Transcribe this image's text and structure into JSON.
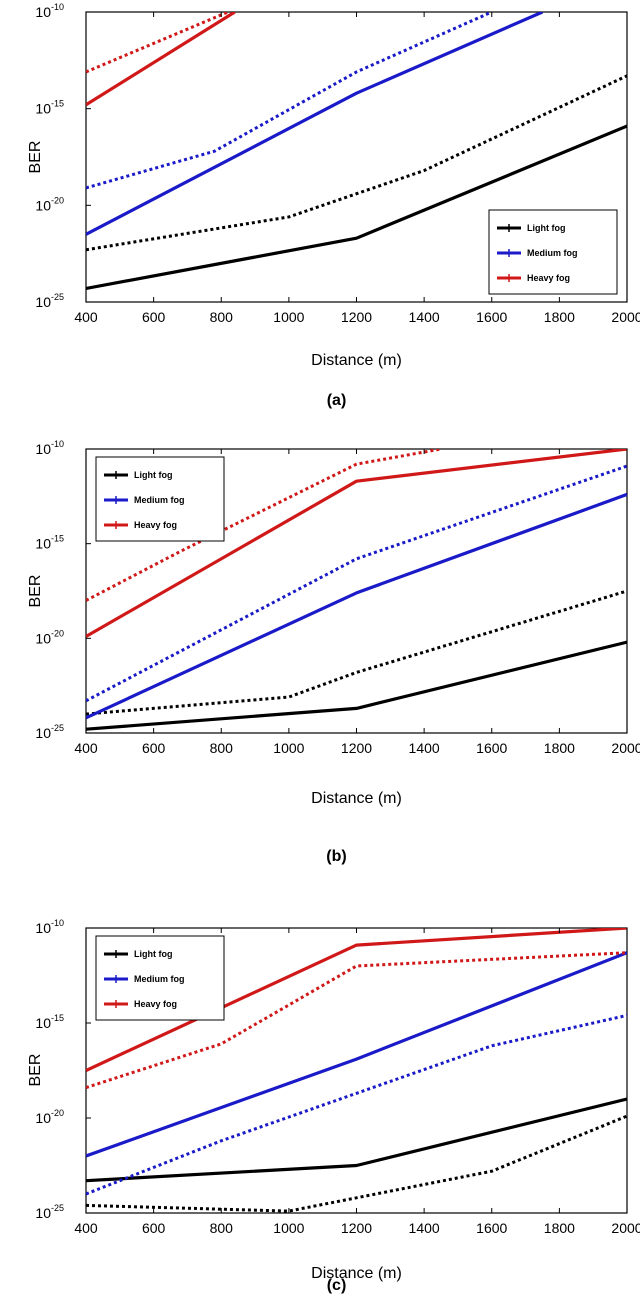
{
  "colors": {
    "light": "#000000",
    "medium": "#1a1ac8",
    "heavy": "#d01818"
  },
  "chart_data": [
    {
      "type": "line",
      "caption": "(a)",
      "xlabel": "Distance (m)",
      "ylabel": "BER",
      "xlim": [
        400,
        2000
      ],
      "ylim_exponent": [
        -25,
        -10
      ],
      "y_scale": "log",
      "xticks": [
        "400",
        "600",
        "800",
        "1000",
        "1200",
        "1400",
        "1600",
        "1800",
        "2000"
      ],
      "ytick_base": "10",
      "yticks_exp": [
        "-10",
        "-15",
        "-20",
        "-25"
      ],
      "legend_position": "bottom-right",
      "legend": [
        {
          "label": "Light fog",
          "color": "light"
        },
        {
          "label": "Medium fog",
          "color": "medium"
        },
        {
          "label": "Heavy fog",
          "color": "heavy"
        }
      ],
      "series": [
        {
          "color": "light",
          "dash": false,
          "x": [
            400,
            1200,
            2000
          ],
          "y": [
            -24.3,
            -21.7,
            -15.9
          ]
        },
        {
          "color": "light",
          "dash": true,
          "x": [
            400,
            1000,
            1400,
            2000
          ],
          "y": [
            -22.3,
            -20.6,
            -18.2,
            -13.3
          ]
        },
        {
          "color": "medium",
          "dash": false,
          "x": [
            400,
            1200,
            1750
          ],
          "y": [
            -21.5,
            -14.2,
            -10
          ]
        },
        {
          "color": "medium",
          "dash": true,
          "x": [
            400,
            780,
            1200,
            1600
          ],
          "y": [
            -19.1,
            -17.2,
            -13.1,
            -10
          ]
        },
        {
          "color": "heavy",
          "dash": false,
          "x": [
            400,
            840
          ],
          "y": [
            -14.8,
            -10
          ]
        },
        {
          "color": "heavy",
          "dash": true,
          "x": [
            400,
            820
          ],
          "y": [
            -13.1,
            -10
          ]
        }
      ]
    },
    {
      "type": "line",
      "caption": "(b)",
      "xlabel": "Distance (m)",
      "ylabel": "BER",
      "xlim": [
        400,
        2000
      ],
      "ylim_exponent": [
        -25,
        -10
      ],
      "y_scale": "log",
      "xticks": [
        "400",
        "600",
        "800",
        "1000",
        "1200",
        "1400",
        "1600",
        "1800",
        "2000"
      ],
      "ytick_base": "10",
      "yticks_exp": [
        "-10",
        "-15",
        "-20",
        "-25"
      ],
      "legend_position": "top-left",
      "legend": [
        {
          "label": "Light fog",
          "color": "light"
        },
        {
          "label": "Medium fog",
          "color": "medium"
        },
        {
          "label": "Heavy fog",
          "color": "heavy"
        }
      ],
      "series": [
        {
          "color": "light",
          "dash": false,
          "x": [
            400,
            1200,
            2000
          ],
          "y": [
            -24.8,
            -23.7,
            -20.2
          ]
        },
        {
          "color": "light",
          "dash": true,
          "x": [
            400,
            1000,
            1200,
            2000
          ],
          "y": [
            -24.0,
            -23.1,
            -21.8,
            -17.5
          ]
        },
        {
          "color": "medium",
          "dash": false,
          "x": [
            400,
            1200,
            2000
          ],
          "y": [
            -24.2,
            -17.6,
            -12.4
          ]
        },
        {
          "color": "medium",
          "dash": true,
          "x": [
            400,
            1200,
            2000
          ],
          "y": [
            -23.3,
            -15.8,
            -10.9
          ]
        },
        {
          "color": "heavy",
          "dash": false,
          "x": [
            400,
            1200,
            2000
          ],
          "y": [
            -19.9,
            -11.7,
            -10
          ]
        },
        {
          "color": "heavy",
          "dash": true,
          "x": [
            400,
            680,
            1200,
            1450
          ],
          "y": [
            -18.0,
            -15.4,
            -10.8,
            -10
          ]
        }
      ]
    },
    {
      "type": "line",
      "caption": "(c)",
      "xlabel": "Distance (m)",
      "ylabel": "BER",
      "xlim": [
        400,
        2000
      ],
      "ylim_exponent": [
        -25,
        -10
      ],
      "y_scale": "log",
      "xticks": [
        "400",
        "600",
        "800",
        "1000",
        "1200",
        "1400",
        "1600",
        "1800",
        "2000"
      ],
      "ytick_base": "10",
      "yticks_exp": [
        "-10",
        "-15",
        "-20",
        "-25"
      ],
      "legend_position": "top-left",
      "legend": [
        {
          "label": "Light fog",
          "color": "light"
        },
        {
          "label": "Medium fog",
          "color": "medium"
        },
        {
          "label": "Heavy fog",
          "color": "heavy"
        }
      ],
      "series": [
        {
          "color": "light",
          "dash": false,
          "x": [
            400,
            1200,
            2000
          ],
          "y": [
            -23.3,
            -22.5,
            -19.0
          ]
        },
        {
          "color": "light",
          "dash": true,
          "x": [
            400,
            1000,
            1600,
            2000
          ],
          "y": [
            -24.6,
            -24.9,
            -22.8,
            -19.9
          ]
        },
        {
          "color": "medium",
          "dash": false,
          "x": [
            400,
            1200,
            2000
          ],
          "y": [
            -22.0,
            -16.9,
            -11.3
          ]
        },
        {
          "color": "medium",
          "dash": true,
          "x": [
            400,
            800,
            1600,
            2000
          ],
          "y": [
            -24.0,
            -21.2,
            -16.2,
            -14.6
          ]
        },
        {
          "color": "heavy",
          "dash": false,
          "x": [
            400,
            1200,
            2000
          ],
          "y": [
            -17.5,
            -10.9,
            -10.0
          ]
        },
        {
          "color": "heavy",
          "dash": true,
          "x": [
            400,
            800,
            1200,
            2000
          ],
          "y": [
            -18.4,
            -16.1,
            -12.0,
            -11.3
          ]
        }
      ]
    }
  ]
}
